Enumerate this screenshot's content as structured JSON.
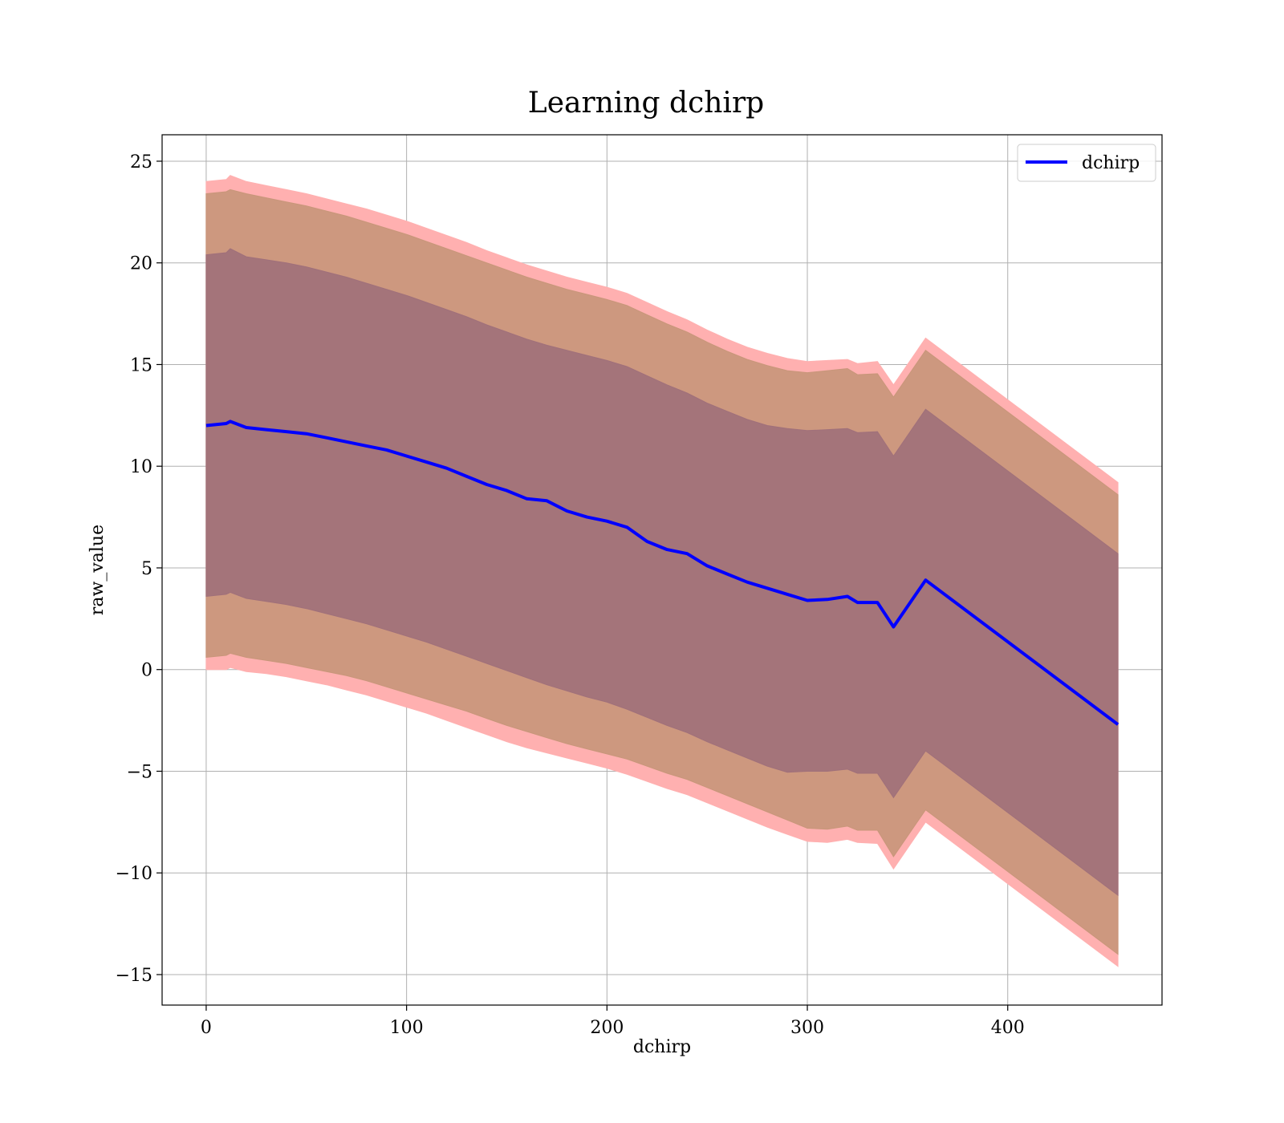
{
  "chart_data": {
    "type": "line",
    "title": "Learning dchirp",
    "xlabel": "dchirp",
    "ylabel": "raw_value",
    "xlim": [
      -22,
      477
    ],
    "ylim": [
      -16.5,
      26.3
    ],
    "xticks": [
      0,
      100,
      200,
      300,
      400
    ],
    "yticks": [
      -15,
      -10,
      -5,
      0,
      5,
      10,
      15,
      20,
      25
    ],
    "xtick_labels": [
      "0",
      "100",
      "200",
      "300",
      "400"
    ],
    "ytick_labels": [
      "−15",
      "−10",
      "−5",
      "0",
      "5",
      "10",
      "15",
      "20",
      "25"
    ],
    "grid": true,
    "legend": {
      "position": "top-right",
      "entries": [
        "dchirp"
      ]
    },
    "colors": {
      "line": "#0000ff",
      "band_outer": "#ffb0b0",
      "band_middle": "#c8967a",
      "band_inner": "#a0707a"
    },
    "x": [
      0,
      10,
      12,
      20,
      30,
      40,
      50,
      60,
      70,
      80,
      90,
      100,
      110,
      120,
      130,
      140,
      150,
      160,
      170,
      180,
      190,
      200,
      210,
      220,
      230,
      240,
      250,
      260,
      270,
      280,
      290,
      300,
      310,
      320,
      325,
      335,
      343,
      359,
      455
    ],
    "series": [
      {
        "name": "dchirp",
        "values": [
          12.0,
          12.1,
          12.2,
          11.9,
          11.8,
          11.7,
          11.6,
          11.4,
          11.2,
          11.0,
          10.8,
          10.5,
          10.2,
          9.9,
          9.5,
          9.1,
          8.8,
          8.4,
          8.3,
          7.8,
          7.5,
          7.3,
          7.0,
          6.3,
          5.9,
          5.7,
          5.1,
          4.7,
          4.3,
          4.0,
          3.7,
          3.4,
          3.45,
          3.6,
          3.3,
          3.3,
          2.1,
          4.4,
          -2.7
        ]
      }
    ],
    "bands": [
      {
        "lower": [
          0.0,
          0.0,
          0.1,
          -0.1,
          -0.2,
          -0.35,
          -0.55,
          -0.75,
          -1.0,
          -1.25,
          -1.55,
          -1.85,
          -2.15,
          -2.5,
          -2.85,
          -3.2,
          -3.55,
          -3.85,
          -4.1,
          -4.35,
          -4.6,
          -4.85,
          -5.15,
          -5.5,
          -5.85,
          -6.15,
          -6.55,
          -6.95,
          -7.35,
          -7.75,
          -8.1,
          -8.45,
          -8.5,
          -8.35,
          -8.5,
          -8.55,
          -9.8,
          -7.5,
          -14.6
        ],
        "upper": [
          24.0,
          24.1,
          24.3,
          24.0,
          23.8,
          23.6,
          23.4,
          23.15,
          22.9,
          22.65,
          22.35,
          22.05,
          21.7,
          21.35,
          21.0,
          20.6,
          20.25,
          19.9,
          19.6,
          19.3,
          19.05,
          18.8,
          18.5,
          18.05,
          17.6,
          17.2,
          16.7,
          16.25,
          15.85,
          15.55,
          15.3,
          15.15,
          15.2,
          15.25,
          15.05,
          15.15,
          14.0,
          16.3,
          9.2
        ]
      },
      {
        "lower": [
          0.6,
          0.7,
          0.8,
          0.6,
          0.45,
          0.3,
          0.1,
          -0.1,
          -0.3,
          -0.55,
          -0.85,
          -1.15,
          -1.45,
          -1.75,
          -2.05,
          -2.4,
          -2.75,
          -3.05,
          -3.35,
          -3.65,
          -3.9,
          -4.15,
          -4.4,
          -4.75,
          -5.1,
          -5.4,
          -5.8,
          -6.2,
          -6.6,
          -7.0,
          -7.4,
          -7.8,
          -7.85,
          -7.7,
          -7.9,
          -7.9,
          -9.2,
          -6.9,
          -14.0
        ],
        "upper": [
          23.4,
          23.5,
          23.6,
          23.4,
          23.2,
          23.0,
          22.8,
          22.55,
          22.3,
          22.0,
          21.7,
          21.4,
          21.05,
          20.7,
          20.35,
          20.0,
          19.65,
          19.3,
          19.0,
          18.7,
          18.45,
          18.2,
          17.9,
          17.45,
          17.0,
          16.6,
          16.1,
          15.65,
          15.25,
          14.95,
          14.7,
          14.6,
          14.7,
          14.8,
          14.5,
          14.55,
          13.4,
          15.7,
          8.6
        ]
      },
      {
        "lower": [
          3.6,
          3.7,
          3.8,
          3.5,
          3.35,
          3.2,
          3.0,
          2.75,
          2.5,
          2.25,
          1.95,
          1.65,
          1.35,
          1.0,
          0.65,
          0.3,
          -0.05,
          -0.4,
          -0.75,
          -1.05,
          -1.35,
          -1.6,
          -1.95,
          -2.35,
          -2.75,
          -3.1,
          -3.55,
          -3.95,
          -4.35,
          -4.75,
          -5.05,
          -5.0,
          -5.0,
          -4.9,
          -5.1,
          -5.1,
          -6.3,
          -4.0,
          -11.1
        ],
        "upper": [
          20.4,
          20.5,
          20.7,
          20.3,
          20.15,
          20.0,
          19.8,
          19.55,
          19.3,
          19.0,
          18.7,
          18.4,
          18.05,
          17.7,
          17.35,
          16.95,
          16.6,
          16.25,
          15.95,
          15.7,
          15.45,
          15.2,
          14.9,
          14.45,
          14.0,
          13.6,
          13.1,
          12.7,
          12.3,
          12.0,
          11.85,
          11.75,
          11.8,
          11.85,
          11.65,
          11.7,
          10.5,
          12.8,
          5.7
        ]
      }
    ]
  }
}
